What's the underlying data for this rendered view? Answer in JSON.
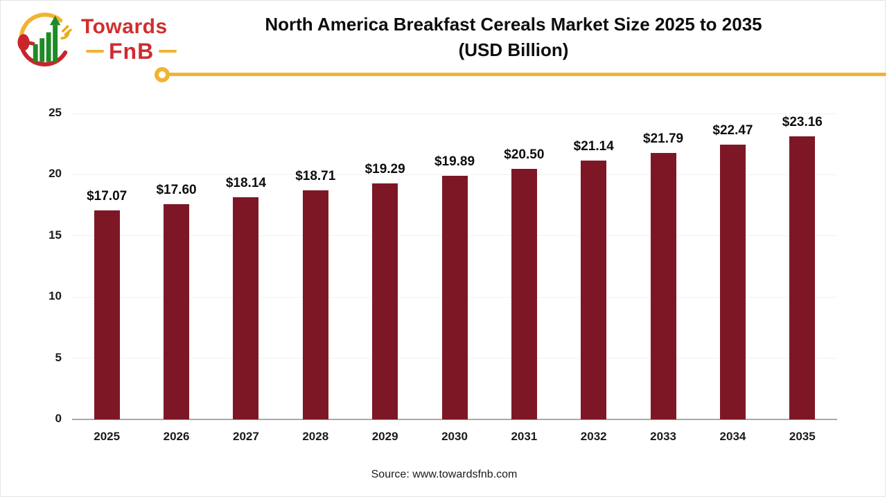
{
  "logo": {
    "towards_label": "Towards",
    "fnb_label": "FnB",
    "colors": {
      "red": "#cf2b30",
      "yellow": "#f2b330",
      "green": "#1f8b24",
      "arc_red": "#c9252b"
    }
  },
  "header": {
    "title_line1": "North America Breakfast Cereals Market Size 2025 to 2035",
    "title_line2": "(USD Billion)"
  },
  "chart_data": {
    "type": "bar",
    "title": "North America Breakfast Cereals Market Size 2025 to 2035 (USD Billion)",
    "categories": [
      "2025",
      "2026",
      "2027",
      "2028",
      "2029",
      "2030",
      "2031",
      "2032",
      "2033",
      "2034",
      "2035"
    ],
    "values": [
      17.07,
      17.6,
      18.14,
      18.71,
      19.29,
      19.89,
      20.5,
      21.14,
      21.79,
      22.47,
      23.16
    ],
    "data_labels": [
      "$17.07",
      "$17.60",
      "$18.14",
      "$18.71",
      "$19.29",
      "$19.89",
      "$20.50",
      "$21.14",
      "$21.79",
      "$22.47",
      "$23.16"
    ],
    "xlabel": "",
    "ylabel": "",
    "y_ticks": [
      0,
      5,
      10,
      15,
      20,
      25
    ],
    "ylim": [
      0,
      25
    ],
    "bar_color": "#7e1725",
    "grid": true,
    "legend": false,
    "accent_color": "#f2b330",
    "grid_color": "#f1f1f1",
    "axis_color": "#a8a8a8"
  },
  "footer": {
    "source_text": "Source: www.towardsfnb.com"
  }
}
